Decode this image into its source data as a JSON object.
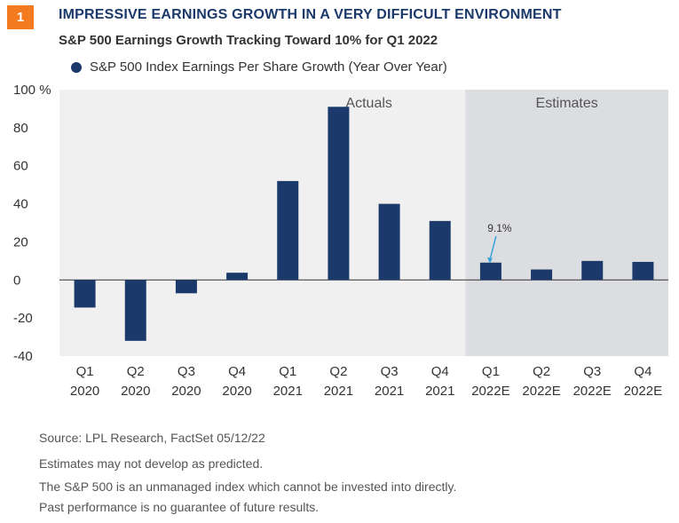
{
  "badge": "1",
  "title": "IMPRESSIVE EARNINGS GROWTH IN A VERY DIFFICULT ENVIRONMENT",
  "subtitle": "S&P 500 Earnings Growth Tracking Toward 10% for Q1 2022",
  "notes": {
    "source": "Source: LPL Research, FactSet  05/12/22",
    "line1": "Estimates may not develop as predicted.",
    "line2": "The S&P 500 is an unmanaged index which cannot be invested into directly.",
    "line3": "Past performance is no guarantee of future results."
  },
  "colors": {
    "bar": "#1b3a6b",
    "badge": "#f47a20",
    "annotation_arrow": "#3ba3dc",
    "actuals_bg": "#f0f0f0",
    "estimates_bg": "#dcdde0"
  },
  "chart_data": {
    "type": "bar",
    "series": [
      {
        "name": "S&P 500 Index Earnings Per Share Growth (Year Over Year)",
        "values": [
          -14.5,
          -32,
          -7,
          3.8,
          52,
          91,
          40,
          31,
          9.1,
          5.5,
          10,
          9.5
        ]
      }
    ],
    "categories": [
      [
        "Q1",
        "2020"
      ],
      [
        "Q2",
        "2020"
      ],
      [
        "Q3",
        "2020"
      ],
      [
        "Q4",
        "2020"
      ],
      [
        "Q1",
        "2021"
      ],
      [
        "Q2",
        "2021"
      ],
      [
        "Q3",
        "2021"
      ],
      [
        "Q4",
        "2021"
      ],
      [
        "Q1",
        "2022E"
      ],
      [
        "Q2",
        "2022E"
      ],
      [
        "Q3",
        "2022E"
      ],
      [
        "Q4",
        "2022E"
      ]
    ],
    "yticks": [
      -40,
      -20,
      0,
      20,
      40,
      60,
      80,
      100
    ],
    "ytick_labels": [
      "-40",
      "-20",
      "0",
      "20",
      "40",
      "60",
      "80",
      "100 %"
    ],
    "ylim": [
      -40,
      100
    ],
    "regions": [
      {
        "label": "Actuals",
        "from_index": 0,
        "to_index": 7
      },
      {
        "label": "Estimates",
        "from_index": 8,
        "to_index": 11
      }
    ],
    "annotations": [
      {
        "index": 8,
        "text": "9.1%"
      }
    ],
    "legend_position": "top-left",
    "grid": false
  }
}
